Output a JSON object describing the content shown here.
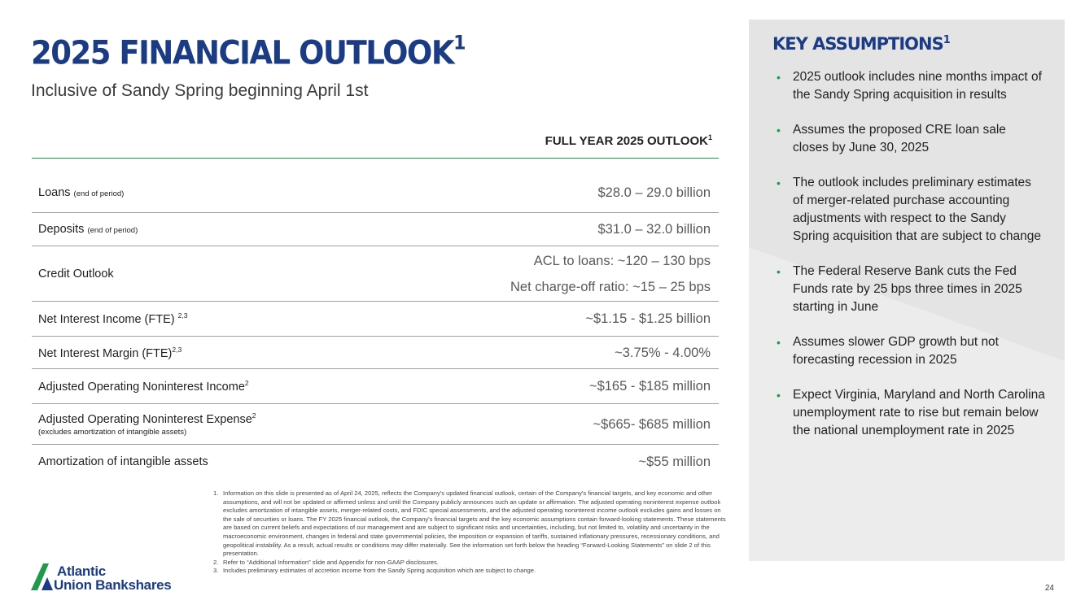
{
  "slide": {
    "title": "2025 FINANCIAL OUTLOOK",
    "title_sup": "1",
    "subtitle": "Inclusive of Sandy Spring beginning April 1st",
    "page_number": "24"
  },
  "table": {
    "header": "FULL YEAR 2025 OUTLOOK",
    "header_sup": "1",
    "rows": [
      {
        "label": "Loans",
        "small": "(end of period)",
        "value": "$28.0 – 29.0 billion"
      },
      {
        "label": "Deposits",
        "small": "(end of period)",
        "value": "$31.0 – 32.0 billion"
      },
      {
        "label": "Credit Outlook",
        "value_line1": "ACL to loans:  ~120 – 130 bps",
        "value_line2": "Net charge-off ratio: ~15 – 25 bps"
      },
      {
        "label": "Net Interest Income (FTE)",
        "sup": "2,3",
        "value": "~$1.15 - $1.25 billion"
      },
      {
        "label": "Net Interest Margin (FTE)",
        "sup": "2,3",
        "value": "~3.75% - 4.00%"
      },
      {
        "label": "Adjusted Operating Noninterest Income",
        "sup": "2",
        "value": "~$165 - $185 million"
      },
      {
        "label": "Adjusted Operating Noninterest Expense",
        "sup": "2",
        "sub": "(excludes amortization of intangible assets)",
        "value": "~$665- $685 million"
      },
      {
        "label": "Amortization of intangible assets",
        "value": "~$55 million"
      }
    ]
  },
  "key_assumptions": {
    "title": "KEY ASSUMPTIONS",
    "title_sup": "1",
    "bullet_glyph": "•",
    "bullets": [
      "2025 outlook includes nine months impact of the Sandy Spring acquisition in results",
      "Assumes the proposed CRE loan sale closes by June 30, 2025",
      "The outlook includes preliminary estimates of merger-related purchase accounting adjustments with respect to the Sandy Spring acquisition that are subject to change",
      "The Federal Reserve Bank cuts the Fed Funds rate by 25 bps three times in 2025 starting in June",
      "Assumes slower GDP growth but not forecasting recession in 2025",
      "Expect Virginia, Maryland and North Carolina unemployment rate to rise but remain below the national unemployment rate in 2025"
    ]
  },
  "footnotes": [
    {
      "num": "1.",
      "text": "Information on this slide is presented as of April 24, 2025, reflects the Company's updated financial outlook, certain of the Company's financial targets, and key economic and other assumptions, and will not be updated or affirmed unless and until the Company publicly announces such an update or affirmation. The adjusted operating noninterest expense outlook excludes amortization of intangible assets, merger-related costs, and FDIC special assessments, and the adjusted operating noninterest income outlook excludes gains and losses on the sale of securities or loans.  The FY 2025 financial outlook, the Company's financial targets and the key economic assumptions contain forward-looking statements. These statements are based on current beliefs and expectations of our management and are subject to significant risks and uncertainties, including, but not limited to, volatility and uncertainty in the macroeconomic environment, changes in federal and state governmental policies, the imposition or expansion of tariffs, sustained inflationary pressures, recessionary conditions, and geopolitical instability.  As a result, actual results or conditions may differ materially.  See the information set forth below the heading “Forward-Looking Statements” on slide 2 of this presentation."
    },
    {
      "num": "2.",
      "text": "Refer to “Additional Information” slide and Appendix for non-GAAP disclosures."
    },
    {
      "num": "3.",
      "text": "Includes preliminary estimates of accretion income from the Sandy Spring acquisition which are subject to change."
    }
  ],
  "logo": {
    "line1": "Atlantic",
    "line2": "Union Bankshares"
  },
  "colors": {
    "brand_blue": "#1b3c85",
    "accent_green": "#1f9a4a",
    "panel_gray": "#ececec"
  }
}
